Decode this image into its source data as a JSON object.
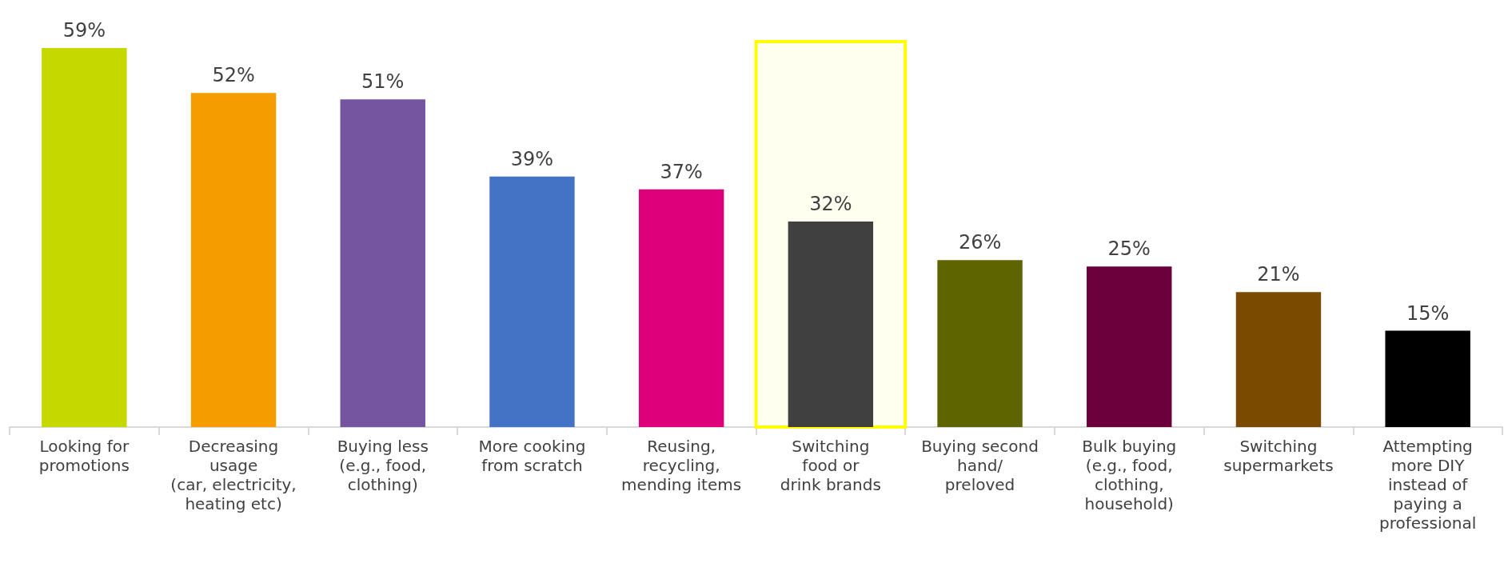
{
  "chart_data": {
    "type": "bar",
    "categories": [
      "Looking for\npromotions",
      "Decreasing\nusage\n(car, electricity,\nheating etc)",
      "Buying less\n(e.g., food,\nclothing)",
      "More cooking\nfrom scratch",
      "Reusing,\nrecycling,\nmending items",
      "Switching\nfood or\ndrink brands",
      "Buying second\nhand/\npreloved",
      "Bulk buying\n(e.g., food,\nclothing,\nhousehold)",
      "Switching\nsupermarkets",
      "Attempting\nmore DIY\ninstead of\npaying a\nprofessional"
    ],
    "values": [
      59,
      52,
      51,
      39,
      37,
      32,
      26,
      25,
      21,
      15
    ],
    "value_labels": [
      "59%",
      "52%",
      "51%",
      "39%",
      "37%",
      "32%",
      "26%",
      "25%",
      "21%",
      "15%"
    ],
    "colors": [
      "#c5d800",
      "#f59d00",
      "#7655a0",
      "#4472c4",
      "#de007b",
      "#404040",
      "#5e6500",
      "#6b003c",
      "#7a4a00",
      "#000000"
    ],
    "bands": [
      {
        "axis": "x",
        "from": "Switching\nfood or\ndrink brands",
        "to": "Switching\nfood or\ndrink brands",
        "color": "#ffff00"
      }
    ]
  }
}
